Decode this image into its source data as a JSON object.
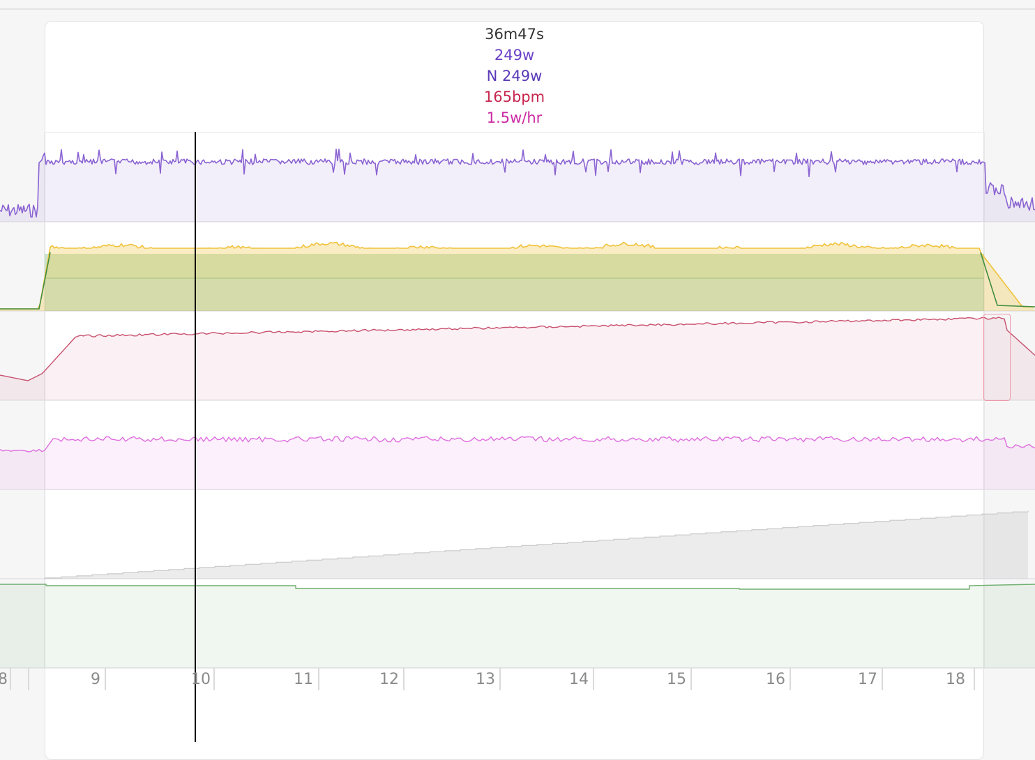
{
  "tooltip": {
    "duration": "36m47s",
    "power": "249w",
    "normalized_power": "N 249w",
    "heart_rate": "165bpm",
    "decoupling": "1.5w/hr"
  },
  "colors": {
    "power": "#8a63d2",
    "power_text": "#6a3fc8",
    "wbal_yellow": "#f0c23a",
    "wbal_green": "#3f8e3f",
    "heart_rate": "#c9506d",
    "heart_rate_text": "#c8264f",
    "ratio": "#df6fdf",
    "ratio_text": "#cc2aa3",
    "cumulative": "#c8c8c8",
    "cadence": "#6fae6f"
  },
  "chart_data": {
    "type": "line",
    "x_axis": {
      "ticks": [
        "8",
        "9",
        "10",
        "11",
        "12",
        "13",
        "14",
        "15",
        "16",
        "17",
        "18"
      ]
    },
    "selected_interval": {
      "duration": "36m47s"
    },
    "series": [
      {
        "key": "power",
        "level": 249
      },
      {
        "key": "wbal"
      },
      {
        "key": "heart_rate",
        "level": 165
      },
      {
        "key": "ratio"
      },
      {
        "key": "cumulative"
      },
      {
        "key": "cadence"
      }
    ]
  }
}
